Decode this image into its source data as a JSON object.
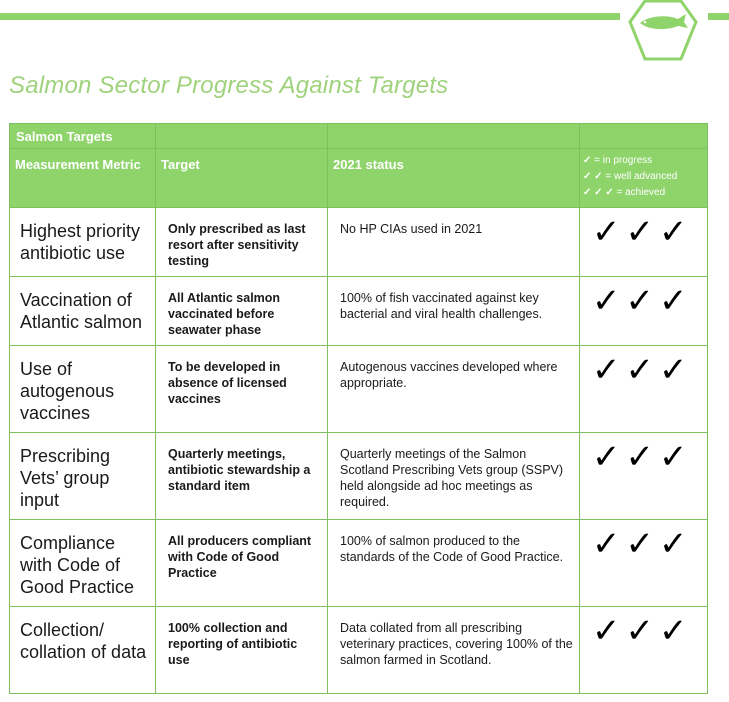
{
  "title": "Salmon Sector Progress Against Targets",
  "badge_icon": "salmon-fish-icon",
  "colors": {
    "accent": "#8fd36b",
    "title": "#9fd27d",
    "border": "#7fbf5e"
  },
  "table": {
    "group_header": "Salmon Targets",
    "col_metric": "Measurement Metric",
    "col_target": "Target",
    "col_status": "2021 status",
    "legend": {
      "in_progress": {
        "marks": "✓",
        "label": "= in progress"
      },
      "well_advanced": {
        "marks": "✓ ✓",
        "label": "= well advanced"
      },
      "achieved": {
        "marks": "✓ ✓ ✓",
        "label": "= achieved"
      }
    },
    "rows": [
      {
        "metric": "Highest priority antibiotic use",
        "target": "Only prescribed as last resort after sensitivity testing",
        "status": "No HP CIAs used in 2021",
        "ticks": "✓✓✓"
      },
      {
        "metric": "Vaccination of Atlantic salmon",
        "target": "All Atlantic salmon vaccinated before seawater phase",
        "status": "100% of fish vaccinated against key bacterial and viral health challenges.",
        "ticks": "✓✓✓"
      },
      {
        "metric": "Use of autogenous vaccines",
        "target": "To be developed in absence of licensed vaccines",
        "status": "Autogenous vaccines developed where appropriate.",
        "ticks": "✓✓✓"
      },
      {
        "metric": "Prescribing Vets’ group input",
        "target": "Quarterly meetings, antibiotic stewardship a standard item",
        "status": "Quarterly meetings of the Salmon Scotland Prescribing Vets group (SSPV) held alongside ad hoc meetings as required.",
        "ticks": "✓✓✓"
      },
      {
        "metric": "Compliance with Code of Good Practice",
        "target": "All producers compliant with Code of Good Practice",
        "status": "100% of salmon produced to the standards of the Code of Good Practice.",
        "ticks": "✓✓✓"
      },
      {
        "metric": "Collection/ collation of data",
        "target": "100% collection and reporting of antibiotic use",
        "status": "Data collated from all prescribing veterinary practices, covering 100% of the salmon farmed in Scotland.",
        "ticks": "✓✓✓"
      }
    ]
  }
}
